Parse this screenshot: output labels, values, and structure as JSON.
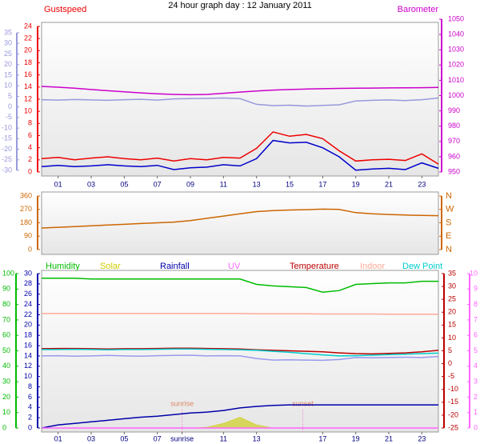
{
  "chart_data": [
    {
      "type": "line",
      "title": "24 hour graph day : 12 January 2011",
      "xlim": [
        0,
        24
      ],
      "x": [
        0,
        1,
        2,
        3,
        4,
        5,
        6,
        7,
        8,
        9,
        10,
        11,
        12,
        13,
        14,
        15,
        16,
        17,
        18,
        19,
        20,
        21,
        22,
        23,
        24
      ],
      "xticks": [
        {
          "value": 1,
          "label": "01"
        },
        {
          "value": 3,
          "label": "03"
        },
        {
          "value": 5,
          "label": "05"
        },
        {
          "value": 7,
          "label": "07"
        },
        {
          "value": 9,
          "label": "09"
        },
        {
          "value": 11,
          "label": "11"
        },
        {
          "value": 13,
          "label": "13"
        },
        {
          "value": 15,
          "label": "15"
        },
        {
          "value": 17,
          "label": "17"
        },
        {
          "value": 19,
          "label": "19"
        },
        {
          "value": 21,
          "label": "21"
        },
        {
          "value": 23,
          "label": "23"
        }
      ],
      "ylim": [
        0,
        24
      ],
      "yticks": [
        0,
        2,
        4,
        6,
        8,
        10,
        12,
        14,
        16,
        18,
        20,
        22,
        24
      ],
      "y2lim": [
        950,
        1050
      ],
      "y2ticks": [
        950,
        960,
        970,
        980,
        990,
        1000,
        1010,
        1020,
        1030,
        1040,
        1050
      ],
      "y3lim": [
        -30,
        35
      ],
      "y3ticks": [
        -30,
        -25,
        -20,
        -15,
        -10,
        -5,
        0,
        5,
        10,
        15,
        20,
        25,
        30,
        35
      ],
      "series": [
        {
          "name": "Gustspeed",
          "color": "#ee0000",
          "axis": "y",
          "values": [
            2.2,
            2.4,
            2.0,
            2.3,
            2.5,
            2.2,
            2.0,
            2.3,
            1.8,
            2.2,
            2.0,
            2.4,
            2.3,
            3.9,
            6.6,
            5.9,
            6.2,
            5.5,
            3.5,
            1.8,
            2.0,
            2.1,
            1.9,
            3.0,
            1.3
          ]
        },
        {
          "name": "Barometer",
          "color": "#cc00cc",
          "axis": "y2",
          "values": [
            1006,
            1005.5,
            1004.8,
            1004,
            1003.2,
            1002.5,
            1001.8,
            1001.2,
            1000.8,
            1000.6,
            1000.8,
            1001.5,
            1002.3,
            1003,
            1003.6,
            1004,
            1004.3,
            1004.5,
            1004.7,
            1004.8,
            1004.9,
            1005,
            1005.1,
            1005.2,
            1005.4
          ]
        },
        {
          "color": "#9999dd",
          "axis": "y3",
          "values": [
            3.4,
            3.2,
            3.5,
            3.3,
            3.1,
            3.4,
            3.6,
            3.2,
            3.8,
            3.9,
            4.0,
            4.2,
            3.9,
            1.2,
            0.6,
            0.8,
            0.4,
            0.7,
            1.0,
            2.8,
            3.1,
            3.3,
            3.0,
            3.4,
            4.2
          ]
        },
        {
          "color": "#0000cc",
          "axis": "y",
          "values": [
            0.9,
            1.1,
            0.9,
            1.0,
            1.2,
            1.0,
            0.9,
            1.1,
            0.4,
            0.7,
            0.8,
            1.2,
            1.0,
            2.2,
            5.2,
            4.8,
            4.9,
            4.0,
            2.5,
            0.3,
            0.5,
            0.6,
            0.4,
            1.5,
            0.6
          ]
        }
      ]
    },
    {
      "type": "line",
      "xlim": [
        0,
        24
      ],
      "x": [
        0,
        1,
        2,
        3,
        4,
        5,
        6,
        7,
        8,
        9,
        10,
        11,
        12,
        13,
        14,
        15,
        16,
        17,
        18,
        19,
        20,
        21,
        22,
        23,
        24
      ],
      "ylim": [
        0,
        360
      ],
      "yticks": [
        0,
        90,
        180,
        270,
        360
      ],
      "y2lim": [
        0,
        360
      ],
      "y2ticks": [
        {
          "value": 0,
          "label": "N"
        },
        {
          "value": 90,
          "label": "E"
        },
        {
          "value": 180,
          "label": "S"
        },
        {
          "value": 270,
          "label": "W"
        },
        {
          "value": 360,
          "label": "N"
        }
      ],
      "series": [
        {
          "color": "#cc6600",
          "axis": "y",
          "values": [
            145,
            150,
            155,
            160,
            165,
            170,
            175,
            180,
            185,
            195,
            210,
            225,
            240,
            255,
            262,
            266,
            268,
            272,
            270,
            248,
            240,
            236,
            232,
            230,
            228
          ]
        }
      ]
    },
    {
      "type": "line",
      "xlim": [
        0,
        24
      ],
      "x": [
        0,
        1,
        2,
        3,
        4,
        5,
        6,
        7,
        8,
        9,
        10,
        11,
        12,
        13,
        14,
        15,
        16,
        17,
        18,
        19,
        20,
        21,
        22,
        23,
        24
      ],
      "xticks": [
        {
          "value": 1,
          "label": "01"
        },
        {
          "value": 3,
          "label": "03"
        },
        {
          "value": 5,
          "label": "05"
        },
        {
          "value": 7,
          "label": "07"
        },
        {
          "value": 8.5,
          "label": "sunrise"
        },
        {
          "value": 11,
          "label": "11"
        },
        {
          "value": 13,
          "label": "13"
        },
        {
          "value": 17,
          "label": "17"
        },
        {
          "value": 19,
          "label": "19"
        },
        {
          "value": 21,
          "label": "21"
        },
        {
          "value": 23,
          "label": "23"
        }
      ],
      "ylim": [
        0,
        100
      ],
      "yticks": [
        0,
        10,
        20,
        30,
        40,
        50,
        60,
        70,
        80,
        90,
        100
      ],
      "y2lim": [
        -25,
        35
      ],
      "y2ticks": [
        -25,
        -20,
        -15,
        -10,
        -5,
        0,
        5,
        10,
        15,
        20,
        25,
        30,
        35
      ],
      "y3lim": [
        0,
        30
      ],
      "y3ticks": [
        0,
        2,
        4,
        6,
        8,
        10,
        12,
        14,
        16,
        18,
        20,
        22,
        24,
        26,
        28,
        30
      ],
      "y4lim": [
        0,
        10
      ],
      "y4ticks": [
        0,
        1,
        2,
        3,
        4,
        5,
        6,
        7,
        8,
        9,
        10
      ],
      "annotations": [
        {
          "text": "sunrise",
          "x": 8.5
        },
        {
          "text": "sunset",
          "x": 15.8
        }
      ],
      "series": [
        {
          "name": "Humidity",
          "color": "#00bb00",
          "axis": "y",
          "values": [
            97,
            97,
            97,
            96.5,
            96.5,
            96.5,
            96.5,
            96.5,
            96.5,
            96.5,
            96.5,
            96.5,
            96.5,
            93,
            92,
            91.5,
            91,
            88,
            89,
            93,
            93.5,
            94,
            94,
            95,
            95
          ]
        },
        {
          "name": "Solar",
          "color": "#cccc00",
          "axis": "y",
          "fill": true,
          "values": [
            0,
            0,
            0,
            0,
            0,
            0,
            0,
            0,
            0,
            0,
            0.5,
            3,
            7,
            2,
            0,
            0,
            0,
            0,
            0,
            0,
            0,
            0,
            0,
            0,
            0
          ]
        },
        {
          "name": "Rainfall",
          "color": "#0000aa",
          "axis": "y3",
          "values": [
            0,
            0.6,
            0.9,
            1.2,
            1.5,
            1.8,
            2.1,
            2.3,
            2.6,
            2.9,
            3.1,
            3.4,
            3.9,
            4.2,
            4.4,
            4.5,
            4.5,
            4.5,
            4.5,
            4.5,
            4.5,
            4.5,
            4.5,
            4.5,
            4.5
          ]
        },
        {
          "name": "UV",
          "color": "#ff66ff",
          "axis": "y4",
          "values": [
            0,
            0,
            0,
            0,
            0,
            0,
            0,
            0,
            0,
            0,
            0,
            0,
            0,
            0,
            0,
            0,
            0,
            0,
            0,
            0,
            0,
            0,
            0,
            0,
            0
          ]
        },
        {
          "name": "Temperature",
          "color": "#bb0000",
          "axis": "y2",
          "values": [
            5.8,
            5.9,
            5.9,
            5.8,
            5.7,
            5.8,
            5.8,
            5.9,
            6.0,
            6.0,
            5.9,
            5.8,
            5.7,
            5.4,
            5.2,
            5.0,
            4.8,
            4.6,
            4.2,
            3.9,
            3.8,
            4.0,
            4.2,
            4.6,
            5.2
          ]
        },
        {
          "name": "Indoor",
          "color": "#ffaa99",
          "axis": "y2",
          "values": [
            19.5,
            19.5,
            19.5,
            19.5,
            19.5,
            19.5,
            19.5,
            19.5,
            19.5,
            19.5,
            19.5,
            19.5,
            19.5,
            19.4,
            19.4,
            19.4,
            19.4,
            19.3,
            19.3,
            19.3,
            19.3,
            19.2,
            19.2,
            19.2,
            19.2
          ]
        },
        {
          "name": "Dew Point",
          "color": "#00cccc",
          "axis": "y2",
          "values": [
            5.5,
            5.5,
            5.6,
            5.5,
            5.4,
            5.5,
            5.5,
            5.6,
            5.7,
            5.7,
            5.6,
            5.5,
            5.4,
            5.2,
            4.8,
            4.4,
            3.9,
            3.4,
            3.0,
            3.1,
            3.3,
            3.5,
            3.7,
            3.9,
            4.1
          ]
        },
        {
          "color": "#9999ee",
          "axis": "y2",
          "values": [
            3.0,
            3.1,
            2.9,
            3.0,
            3.2,
            3.0,
            2.9,
            3.1,
            3.2,
            3.3,
            3.0,
            3.1,
            3.0,
            2.0,
            1.4,
            1.5,
            1.4,
            1.3,
            1.6,
            2.4,
            2.3,
            2.4,
            2.5,
            2.4,
            2.8
          ]
        }
      ]
    }
  ]
}
